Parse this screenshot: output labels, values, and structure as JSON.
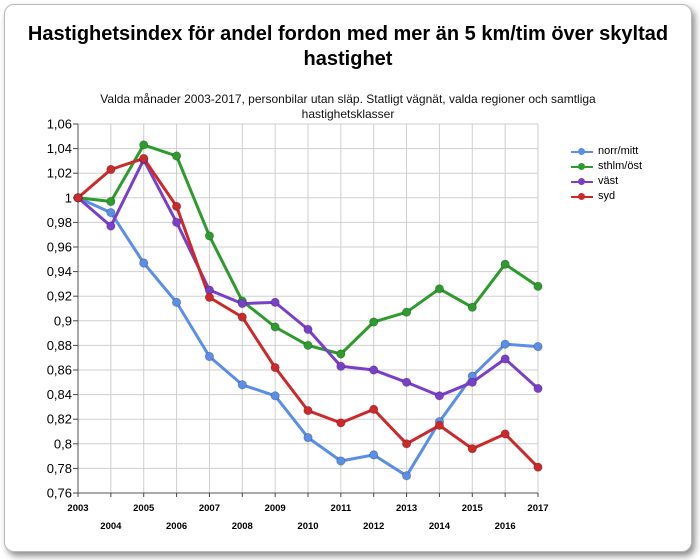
{
  "chart_data": {
    "type": "line",
    "title": "Hastighetsindex för andel fordon med mer än 5 km/tim över skyltad hastighet",
    "subtitle": "Valda månader 2003-2017, personbilar utan släp. Statligt vägnät, valda regioner och samtliga hastighetsklasser",
    "xlabel": "",
    "ylabel": "",
    "x": [
      "2003",
      "2004",
      "2005",
      "2006",
      "2007",
      "2008",
      "2009",
      "2010",
      "2011",
      "2012",
      "2013",
      "2014",
      "2015",
      "2016",
      "2017"
    ],
    "ylim": [
      0.76,
      1.06
    ],
    "yticks": [
      "0,76",
      "0,78",
      "0,8",
      "0,82",
      "0,84",
      "0,86",
      "0,88",
      "0,9",
      "0,92",
      "0,94",
      "0,96",
      "0,98",
      "1",
      "1,02",
      "1,04",
      "1,06"
    ],
    "grid": true,
    "legend_position": "right",
    "series": [
      {
        "name": "norr/mitt",
        "color": "#5b8ee6",
        "values": [
          1.0,
          0.988,
          0.947,
          0.915,
          0.871,
          0.848,
          0.839,
          0.805,
          0.786,
          0.791,
          0.774,
          0.818,
          0.855,
          0.881,
          0.879
        ]
      },
      {
        "name": "sthlm/öst",
        "color": "#2e9b2e",
        "values": [
          1.0,
          0.997,
          1.043,
          1.034,
          0.969,
          0.916,
          0.895,
          0.88,
          0.873,
          0.899,
          0.907,
          0.926,
          0.911,
          0.946,
          0.928
        ]
      },
      {
        "name": "väst",
        "color": "#7a3fc9",
        "values": [
          1.0,
          0.977,
          1.031,
          0.98,
          0.925,
          0.914,
          0.915,
          0.893,
          0.863,
          0.86,
          0.85,
          0.839,
          0.85,
          0.869,
          0.845
        ]
      },
      {
        "name": "syd",
        "color": "#cc2a2a",
        "values": [
          1.0,
          1.023,
          1.032,
          0.993,
          0.919,
          0.903,
          0.862,
          0.827,
          0.817,
          0.828,
          0.8,
          0.815,
          0.796,
          0.808,
          0.781
        ]
      }
    ]
  }
}
